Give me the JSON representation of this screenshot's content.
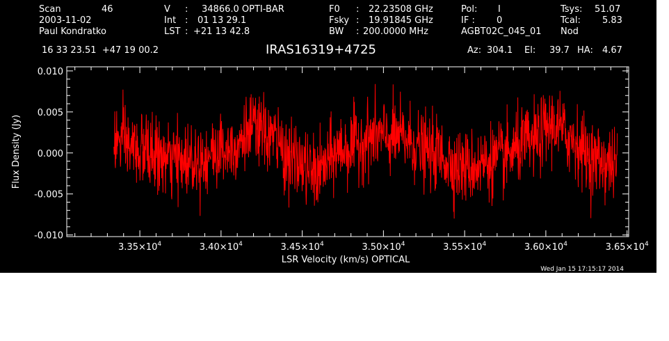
{
  "header": {
    "scan_label": "Scan",
    "scan_value": "46",
    "date": "2003-11-02",
    "observer": "Paul Kondratko",
    "v_label": "V",
    "v_value": "34866.0 OPTI-BAR",
    "int_label": "Int",
    "int_value": "01 13 29.1",
    "lst_label": "LST",
    "lst_value": "+21 13 42.8",
    "f0_label": "F0",
    "f0_value": "22.23508 GHz",
    "fsky_label": "Fsky",
    "fsky_value": "19.91845 GHz",
    "bw_label": "BW",
    "bw_value": "200.0000 MHz",
    "pol_label": "Pol:",
    "pol_value": "I",
    "if_label": "IF :",
    "if_value": "0",
    "project": "AGBT02C_045_01",
    "tsys_label": "Tsys:",
    "tsys_value": "51.07",
    "tcal_label": "Tcal:",
    "tcal_value": "5.83",
    "mode": "Nod",
    "coords": "16 33 23.51  +47 19 00.2",
    "source": "IRAS16319+4725",
    "az_label": "Az:",
    "az_value": "304.1",
    "el_label": "El:",
    "el_value": "39.7",
    "ha_label": "HA:",
    "ha_value": "4.67",
    "timestamp": "Wed Jan 15 17:15:17 2014"
  },
  "chart_data": {
    "type": "line",
    "xlabel": "LSR Velocity (km/s) OPTICAL",
    "ylabel": "Flux Density (Jy)",
    "xlim": [
      33050,
      36510
    ],
    "ylim": [
      -0.0102,
      0.0105
    ],
    "x_ticks": [
      {
        "value": 33500,
        "label": "3.35×10",
        "exp": "4"
      },
      {
        "value": 34000,
        "label": "3.40×10",
        "exp": "4"
      },
      {
        "value": 34500,
        "label": "3.45×10",
        "exp": "4"
      },
      {
        "value": 35000,
        "label": "3.50×10",
        "exp": "4"
      },
      {
        "value": 35500,
        "label": "3.55×10",
        "exp": "4"
      },
      {
        "value": 36000,
        "label": "3.60×10",
        "exp": "4"
      },
      {
        "value": 36500,
        "label": "3.65×10",
        "exp": "4"
      }
    ],
    "y_ticks": [
      {
        "value": 0.01,
        "label": "0.010"
      },
      {
        "value": 0.005,
        "label": "0.005"
      },
      {
        "value": 0.0,
        "label": "0.000"
      },
      {
        "value": -0.005,
        "label": "-0.005"
      },
      {
        "value": -0.01,
        "label": "-0.010"
      }
    ],
    "line_color": "#ff0000",
    "axis_color": "#ffffff",
    "background": "#000000",
    "grid": false,
    "series": [
      {
        "x_start": 33340,
        "x_end": 36440,
        "n_points": 1600,
        "noise_sigma": 0.0022,
        "baseline_knots": [
          [
            33340,
            0.0015
          ],
          [
            33500,
            0.0003
          ],
          [
            33700,
            -0.001
          ],
          [
            33900,
            -0.0005
          ],
          [
            34050,
            0.0007
          ],
          [
            34200,
            0.0028
          ],
          [
            34300,
            0.002
          ],
          [
            34450,
            -0.001
          ],
          [
            34580,
            -0.0025
          ],
          [
            34750,
            0.0005
          ],
          [
            34950,
            0.002
          ],
          [
            35100,
            0.0018
          ],
          [
            35300,
            0.0
          ],
          [
            35500,
            -0.0018
          ],
          [
            35700,
            -0.0008
          ],
          [
            35900,
            0.0012
          ],
          [
            36050,
            0.0035
          ],
          [
            36150,
            0.0018
          ],
          [
            36300,
            -0.0008
          ],
          [
            36440,
            -0.0015
          ]
        ]
      }
    ]
  }
}
